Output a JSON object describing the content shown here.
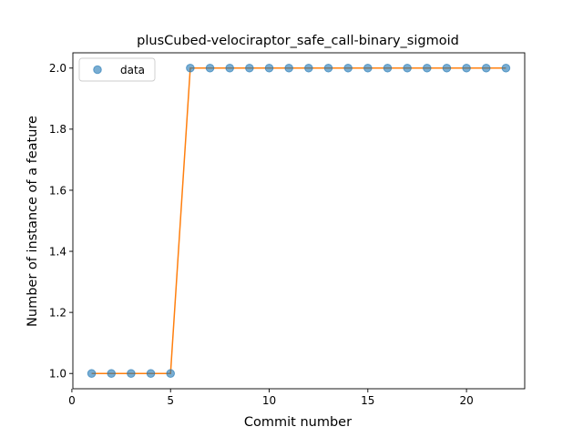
{
  "chart_data": {
    "type": "line",
    "title": "plusCubed-velociraptor_safe_call-binary_sigmoid",
    "xlabel": "Commit number",
    "ylabel": "Number of instance of a feature",
    "xlim": [
      0.05,
      22.95
    ],
    "ylim": [
      0.95,
      2.05
    ],
    "xticks": [
      0,
      5,
      10,
      15,
      20
    ],
    "yticks": [
      1.0,
      1.2,
      1.4,
      1.6,
      1.8,
      2.0
    ],
    "xtick_labels": [
      "0",
      "5",
      "10",
      "15",
      "20"
    ],
    "ytick_labels": [
      "1.0",
      "1.2",
      "1.4",
      "1.6",
      "1.8",
      "2.0"
    ],
    "grid": false,
    "legend": {
      "placement": "top-left",
      "entries": [
        "data"
      ]
    },
    "series": [
      {
        "name": "data",
        "style": "scatter",
        "color": "#1f77b4",
        "x": [
          1,
          2,
          3,
          4,
          5,
          6,
          7,
          8,
          9,
          10,
          11,
          12,
          13,
          14,
          15,
          16,
          17,
          18,
          19,
          20,
          21,
          22
        ],
        "y": [
          1,
          1,
          1,
          1,
          1,
          2,
          2,
          2,
          2,
          2,
          2,
          2,
          2,
          2,
          2,
          2,
          2,
          2,
          2,
          2,
          2,
          2
        ]
      },
      {
        "style": "line",
        "color": "#ff7f0e",
        "x": [
          1,
          2,
          3,
          4,
          5,
          6,
          7,
          8,
          9,
          10,
          11,
          12,
          13,
          14,
          15,
          16,
          17,
          18,
          19,
          20,
          21,
          22
        ],
        "y": [
          1,
          1,
          1,
          1,
          1,
          2,
          2,
          2,
          2,
          2,
          2,
          2,
          2,
          2,
          2,
          2,
          2,
          2,
          2,
          2,
          2,
          2
        ]
      }
    ]
  }
}
